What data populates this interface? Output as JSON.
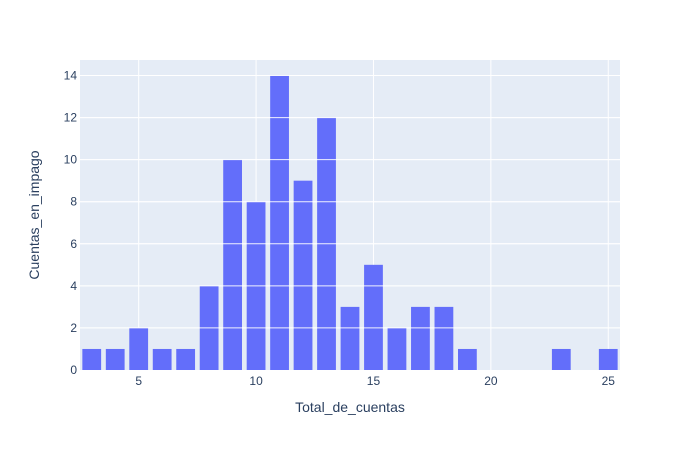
{
  "chart_data": {
    "type": "bar",
    "xlabel": "Total_de_cuentas",
    "ylabel": "Cuentas_en_impago",
    "xlim": [
      2.5,
      25.5
    ],
    "ylim": [
      0,
      14.7368
    ],
    "xticks": [
      "5",
      "10",
      "15",
      "20",
      "25"
    ],
    "yticks": [
      "0",
      "2",
      "4",
      "6",
      "8",
      "10",
      "12",
      "14"
    ],
    "x": [
      3,
      4,
      5,
      6,
      7,
      8,
      9,
      10,
      11,
      12,
      13,
      14,
      15,
      16,
      17,
      18,
      19,
      23,
      25
    ],
    "values": [
      1,
      1,
      2,
      1,
      1,
      4,
      10,
      8,
      14,
      9,
      12,
      3,
      5,
      2,
      3,
      3,
      1,
      1,
      1
    ],
    "grid": true,
    "colors": {
      "bar": "#636efa",
      "plot_bg": "#e5ecf6",
      "gridline": "#ffffff",
      "text": "#2a3f5f"
    }
  }
}
